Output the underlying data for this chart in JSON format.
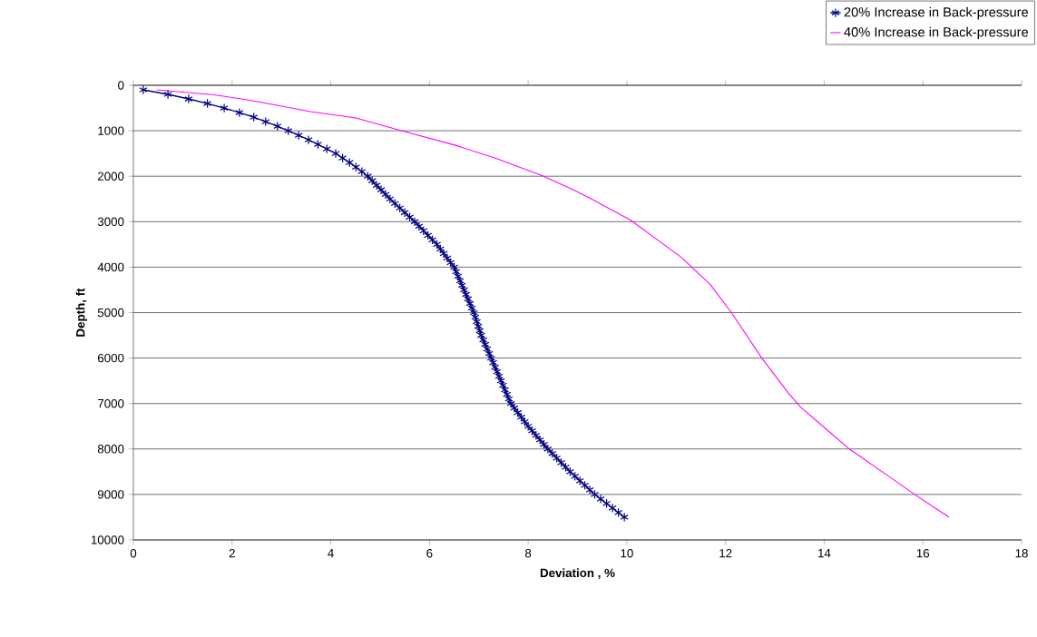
{
  "chart_data": {
    "type": "line",
    "xlabel": "Deviation , %",
    "ylabel": "Depth, ft",
    "xlim": [
      0,
      18
    ],
    "xticks": [
      0,
      2,
      4,
      6,
      8,
      10,
      12,
      14,
      16,
      18
    ],
    "ylim": [
      10000,
      0
    ],
    "yticks": [
      0,
      1000,
      2000,
      3000,
      4000,
      5000,
      6000,
      7000,
      8000,
      9000,
      10000
    ],
    "grid": "y",
    "legend": "top right",
    "line_style": "solid",
    "series": [
      {
        "name": "20% Increase in Back-pressure",
        "color": "#000080",
        "marker": "cross",
        "x": [
          0.2,
          0.7,
          1.12,
          1.5,
          1.84,
          2.15,
          2.44,
          2.68,
          2.92,
          3.14,
          3.35,
          3.55,
          3.74,
          3.92,
          4.1,
          4.24,
          4.38,
          4.51,
          4.63,
          4.75,
          4.84,
          4.93,
          5.02,
          5.11,
          5.2,
          5.3,
          5.4,
          5.5,
          5.6,
          5.7,
          5.79,
          5.88,
          5.97,
          6.06,
          6.15,
          6.22,
          6.29,
          6.36,
          6.43,
          6.5,
          6.54,
          6.58,
          6.62,
          6.66,
          6.7,
          6.74,
          6.78,
          6.82,
          6.86,
          6.9,
          6.93,
          6.96,
          6.99,
          7.02,
          7.05,
          7.09,
          7.13,
          7.17,
          7.21,
          7.25,
          7.29,
          7.33,
          7.37,
          7.41,
          7.45,
          7.49,
          7.53,
          7.57,
          7.61,
          7.65,
          7.72,
          7.79,
          7.86,
          7.93,
          8.0,
          8.08,
          8.16,
          8.24,
          8.32,
          8.4,
          8.49,
          8.58,
          8.67,
          8.76,
          8.85,
          8.95,
          9.05,
          9.15,
          9.25,
          9.35,
          9.47,
          9.59,
          9.71,
          9.83,
          9.95
        ],
        "values": [
          100,
          200,
          300,
          400,
          500,
          600,
          700,
          800,
          900,
          1000,
          1100,
          1200,
          1300,
          1400,
          1500,
          1600,
          1700,
          1800,
          1900,
          2000,
          2100,
          2200,
          2300,
          2400,
          2500,
          2600,
          2700,
          2800,
          2900,
          3000,
          3100,
          3200,
          3300,
          3400,
          3500,
          3600,
          3700,
          3800,
          3900,
          4000,
          4100,
          4200,
          4300,
          4400,
          4500,
          4600,
          4700,
          4800,
          4900,
          5000,
          5100,
          5200,
          5300,
          5400,
          5500,
          5600,
          5700,
          5800,
          5900,
          6000,
          6100,
          6200,
          6300,
          6400,
          6500,
          6600,
          6700,
          6800,
          6900,
          7000,
          7100,
          7200,
          7300,
          7400,
          7500,
          7600,
          7700,
          7800,
          7900,
          8000,
          8100,
          8200,
          8300,
          8400,
          8500,
          8600,
          8700,
          8800,
          8900,
          9000,
          9100,
          9200,
          9300,
          9400,
          9500
        ]
      },
      {
        "name": "40% Increase in Back-pressure",
        "color": "#ff00ff",
        "marker": "none",
        "x": [
          0.47,
          1.64,
          2.37,
          3.59,
          4.51,
          5.43,
          6.53,
          7.36,
          8.27,
          8.92,
          9.25,
          10.08,
          11.1,
          11.68,
          12.12,
          12.73,
          13.28,
          13.53,
          14.08,
          14.51,
          15.24,
          15.82,
          16.53
        ],
        "values": [
          100,
          210,
          330,
          580,
          720,
          1000,
          1320,
          1610,
          1980,
          2300,
          2480,
          2970,
          3780,
          4370,
          5000,
          5990,
          6780,
          7090,
          7600,
          8000,
          8550,
          8990,
          9500
        ]
      }
    ]
  }
}
